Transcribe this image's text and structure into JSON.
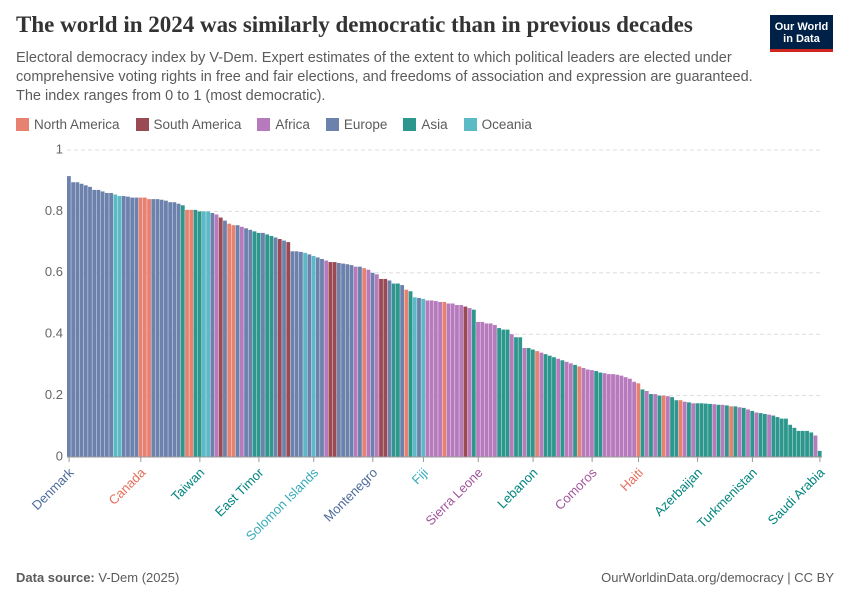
{
  "chart_data": {
    "type": "bar",
    "title": "The world in 2024 was similarly democratic than in previous decades",
    "subtitle": "Electoral democracy index by V-Dem. Expert estimates of the extent to which political leaders are elected under comprehensive voting rights in free and fair elections, and freedoms of association and expression are guaranteed. The index ranges from 0 to 1 (most democratic).",
    "logo": [
      "Our World",
      "in Data"
    ],
    "legend": [
      {
        "name": "North America",
        "color": "#e6826f",
        "label_color": "#e56e5a"
      },
      {
        "name": "South America",
        "color": "#9a4a53",
        "label_color": "#883039"
      },
      {
        "name": "Africa",
        "color": "#b77bbd",
        "label_color": "#a2559c"
      },
      {
        "name": "Europe",
        "color": "#6c82ad",
        "label_color": "#4c6a9c"
      },
      {
        "name": "Asia",
        "color": "#2e978d",
        "label_color": "#00847e"
      },
      {
        "name": "Oceania",
        "color": "#5bbac6",
        "label_color": "#38aaba"
      }
    ],
    "ylim": [
      0,
      1
    ],
    "yticks": [
      0,
      0.2,
      0.4,
      0.6,
      0.8,
      1
    ],
    "grid": true,
    "categories": [
      "Denmark",
      null,
      null,
      null,
      null,
      null,
      null,
      null,
      null,
      null,
      null,
      null,
      null,
      null,
      null,
      null,
      null,
      "Canada",
      null,
      null,
      null,
      null,
      null,
      null,
      null,
      null,
      null,
      null,
      null,
      null,
      null,
      "Taiwan",
      null,
      null,
      null,
      null,
      null,
      null,
      null,
      null,
      null,
      null,
      null,
      null,
      null,
      "East Timor",
      null,
      null,
      null,
      null,
      null,
      null,
      null,
      null,
      null,
      null,
      null,
      null,
      "Solomon Islands",
      null,
      null,
      null,
      null,
      null,
      null,
      null,
      null,
      null,
      null,
      null,
      null,
      null,
      "Montenegro",
      null,
      null,
      null,
      null,
      null,
      null,
      null,
      null,
      null,
      null,
      null,
      "Fiji",
      null,
      null,
      null,
      null,
      null,
      null,
      null,
      null,
      null,
      null,
      null,
      null,
      "Sierra Leone",
      null,
      null,
      null,
      null,
      null,
      null,
      null,
      null,
      null,
      null,
      null,
      null,
      "Lebanon",
      null,
      null,
      null,
      null,
      null,
      null,
      null,
      null,
      null,
      null,
      null,
      null,
      null,
      "Comoros",
      null,
      null,
      null,
      null,
      null,
      null,
      null,
      null,
      null,
      null,
      "Haiti",
      null,
      null,
      null,
      null,
      null,
      null,
      null,
      null,
      null,
      null,
      null,
      null,
      null,
      "Azerbaijan",
      null,
      null,
      null,
      null,
      null,
      null,
      null,
      null,
      null,
      null,
      null,
      null,
      "Turkmenistan",
      null,
      null,
      null,
      null,
      null,
      null,
      null,
      null,
      null,
      null,
      null,
      null,
      null,
      null,
      null,
      "Saudi Arabia"
    ],
    "values": [
      0.915,
      0.895,
      0.895,
      0.89,
      0.885,
      0.88,
      0.87,
      0.87,
      0.865,
      0.86,
      0.86,
      0.855,
      0.85,
      0.85,
      0.848,
      0.845,
      0.845,
      0.845,
      0.845,
      0.84,
      0.84,
      0.84,
      0.838,
      0.835,
      0.83,
      0.83,
      0.825,
      0.82,
      0.805,
      0.805,
      0.805,
      0.8,
      0.8,
      0.8,
      0.795,
      0.79,
      0.78,
      0.77,
      0.76,
      0.755,
      0.755,
      0.75,
      0.745,
      0.74,
      0.735,
      0.73,
      0.73,
      0.725,
      0.72,
      0.715,
      0.71,
      0.705,
      0.7,
      0.67,
      0.67,
      0.668,
      0.665,
      0.66,
      0.655,
      0.65,
      0.645,
      0.64,
      0.635,
      0.635,
      0.632,
      0.63,
      0.628,
      0.625,
      0.62,
      0.62,
      0.615,
      0.61,
      0.6,
      0.595,
      0.58,
      0.58,
      0.575,
      0.565,
      0.565,
      0.56,
      0.545,
      0.54,
      0.52,
      0.518,
      0.515,
      0.51,
      0.51,
      0.508,
      0.505,
      0.505,
      0.5,
      0.5,
      0.495,
      0.495,
      0.49,
      0.485,
      0.48,
      0.44,
      0.44,
      0.435,
      0.435,
      0.43,
      0.42,
      0.415,
      0.415,
      0.4,
      0.39,
      0.39,
      0.355,
      0.355,
      0.35,
      0.345,
      0.34,
      0.335,
      0.33,
      0.325,
      0.32,
      0.315,
      0.31,
      0.305,
      0.3,
      0.295,
      0.29,
      0.285,
      0.283,
      0.28,
      0.275,
      0.273,
      0.27,
      0.27,
      0.268,
      0.265,
      0.26,
      0.255,
      0.245,
      0.24,
      0.22,
      0.215,
      0.205,
      0.205,
      0.2,
      0.2,
      0.198,
      0.195,
      0.185,
      0.185,
      0.18,
      0.178,
      0.175,
      0.175,
      0.175,
      0.174,
      0.173,
      0.172,
      0.17,
      0.17,
      0.168,
      0.165,
      0.165,
      0.162,
      0.16,
      0.155,
      0.15,
      0.145,
      0.143,
      0.14,
      0.138,
      0.135,
      0.13,
      0.125,
      0.125,
      0.105,
      0.095,
      0.085,
      0.085,
      0.085,
      0.08,
      0.07,
      0.02
    ],
    "regions": [
      "Europe",
      "Europe",
      "Europe",
      "Europe",
      "Europe",
      "Europe",
      "Europe",
      "Europe",
      "Europe",
      "Europe",
      "Europe",
      "Oceania",
      "Oceania",
      "Europe",
      "Europe",
      "Europe",
      "Europe",
      "North America",
      "North America",
      "North America",
      "Europe",
      "Europe",
      "Europe",
      "Europe",
      "Europe",
      "Europe",
      "Europe",
      "Asia",
      "North America",
      "North America",
      "Asia",
      "Asia",
      "Oceania",
      "Oceania",
      "Europe",
      "Africa",
      "South America",
      "Europe",
      "North America",
      "North America",
      "Europe",
      "Africa",
      "Europe",
      "Europe",
      "Asia",
      "Asia",
      "Europe",
      "Asia",
      "Asia",
      "Europe",
      "South America",
      "Europe",
      "South America",
      "Europe",
      "Europe",
      "Europe",
      "Oceania",
      "Europe",
      "Oceania",
      "Europe",
      "Europe",
      "Africa",
      "South America",
      "South America",
      "Europe",
      "Europe",
      "Europe",
      "Europe",
      "Africa",
      "Europe",
      "North America",
      "Africa",
      "Europe",
      "Africa",
      "South America",
      "South America",
      "Europe",
      "Asia",
      "Asia",
      "Europe",
      "North America",
      "Asia",
      "Oceania",
      "Europe",
      "Oceania",
      "Africa",
      "Africa",
      "Africa",
      "Africa",
      "North America",
      "Africa",
      "Africa",
      "Africa",
      "Africa",
      "South America",
      "Africa",
      "Asia",
      "Africa",
      "Africa",
      "Africa",
      "Africa",
      "Africa",
      "Asia",
      "Asia",
      "Asia",
      "Africa",
      "Asia",
      "Asia",
      "Africa",
      "Asia",
      "Asia",
      "North America",
      "Africa",
      "Asia",
      "Asia",
      "Asia",
      "Africa",
      "Asia",
      "Africa",
      "Africa",
      "Asia",
      "North America",
      "Africa",
      "Africa",
      "Africa",
      "Asia",
      "Asia",
      "Africa",
      "Africa",
      "Africa",
      "Africa",
      "Africa",
      "Africa",
      "Africa",
      "Africa",
      "North America",
      "Asia",
      "Africa",
      "Asia",
      "Africa",
      "Asia",
      "North America",
      "Africa",
      "Asia",
      "Asia",
      "North America",
      "Africa",
      "Asia",
      "Africa",
      "Asia",
      "Asia",
      "Asia",
      "Asia",
      "Africa",
      "Asia",
      "Africa",
      "Asia",
      "North America",
      "Asia",
      "Africa",
      "Asia",
      "Africa",
      "Asia",
      "Africa",
      "Asia",
      "Asia",
      "Africa",
      "Asia",
      "Asia",
      "Asia",
      "Asia",
      "Asia",
      "Asia",
      "Asia",
      "Asia",
      "Asia",
      "Asia",
      "Africa",
      "Asia"
    ],
    "footer": {
      "source_label": "Data source:",
      "source": "V-Dem (2025)",
      "credit": "OurWorldinData.org/democracy | CC BY"
    }
  }
}
